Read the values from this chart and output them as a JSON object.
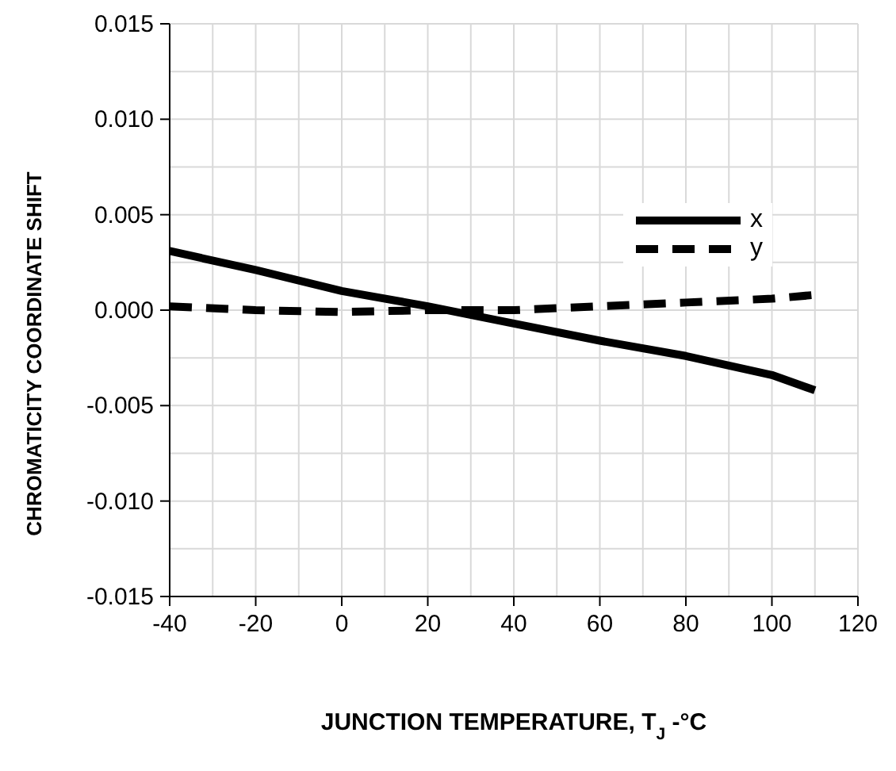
{
  "chart_data": {
    "type": "line",
    "xlabel": "JUNCTION TEMPERATURE, T$_{J}$ -°C",
    "ylabel": "CHROMATICITY COORDINATE SHIFT",
    "x": [
      -40,
      -20,
      0,
      20,
      40,
      60,
      80,
      100,
      110
    ],
    "series": [
      {
        "name": "x",
        "color": "#000000",
        "line_style": "solid",
        "values": [
          0.0031,
          0.0021,
          0.001,
          0.0002,
          -0.0007,
          -0.0016,
          -0.0024,
          -0.0034,
          -0.0042
        ]
      },
      {
        "name": "y",
        "color": "#000000",
        "line_style": "dashed",
        "values": [
          0.0002,
          0.0,
          -0.0001,
          0.0,
          0.0,
          0.0002,
          0.0004,
          0.0006,
          0.0008
        ]
      }
    ],
    "xlim": [
      -40,
      120
    ],
    "xticks": [
      -40,
      {
        "value": -30,
        "label": null
      },
      -20,
      {
        "value": -10,
        "label": null
      },
      0,
      {
        "value": 10,
        "label": null
      },
      20,
      {
        "value": 30,
        "label": null
      },
      40,
      {
        "value": 50,
        "label": null
      },
      60,
      {
        "value": 70,
        "label": null
      },
      80,
      {
        "value": 90,
        "label": null
      },
      100,
      {
        "value": 110,
        "label": null
      },
      120
    ],
    "ylim": [
      -0.015,
      0.015
    ],
    "yticks": [
      -0.015,
      {
        "value": -0.0125,
        "label": null
      },
      {
        "value": -0.01,
        "label": "-0.010"
      },
      {
        "value": -0.0075,
        "label": null
      },
      -0.005,
      {
        "value": -0.0025,
        "label": null
      },
      {
        "value": 0,
        "label": "0.000"
      },
      {
        "value": 0.0025,
        "label": null
      },
      0.005,
      {
        "value": 0.0075,
        "label": null
      },
      {
        "value": 0.01,
        "label": "0.010"
      },
      {
        "value": 0.0125,
        "label": null
      },
      0.015
    ],
    "grid": true,
    "legend": "top right",
    "marker": "none"
  }
}
